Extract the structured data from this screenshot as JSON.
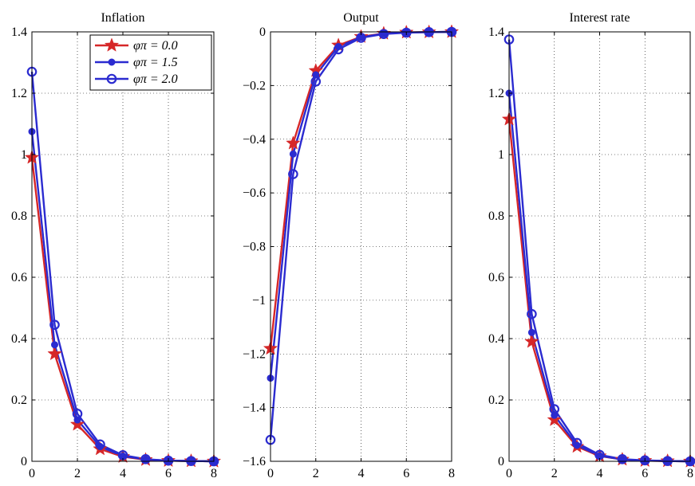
{
  "chart_data": [
    {
      "type": "line",
      "title": "Inflation",
      "xlabel": "",
      "ylabel": "",
      "xlim": [
        0,
        8
      ],
      "ylim": [
        0,
        1.4
      ],
      "xticks": [
        0,
        2,
        4,
        6,
        8
      ],
      "yticks": [
        0,
        0.2,
        0.4,
        0.6,
        0.8,
        1,
        1.2,
        1.4
      ],
      "xtick_labels": [
        "0",
        "2",
        "4",
        "6",
        "8"
      ],
      "ytick_labels": [
        "0",
        "0.2",
        "0.4",
        "0.6",
        "0.8",
        "1",
        "1.2",
        "1.4"
      ],
      "grid": true,
      "legend": "top-right",
      "x": [
        0,
        1,
        2,
        3,
        4,
        5,
        6,
        7,
        8
      ],
      "series": [
        {
          "name": "φπ = 0.0",
          "marker": "star",
          "color": "#d62728",
          "values": [
            0.99,
            0.35,
            0.12,
            0.04,
            0.015,
            0.005,
            0.002,
            0.001,
            0.0
          ]
        },
        {
          "name": "φπ = 1.5",
          "marker": "dot",
          "color": "#2b2bd0",
          "values": [
            1.075,
            0.38,
            0.135,
            0.048,
            0.017,
            0.006,
            0.002,
            0.001,
            0.0
          ]
        },
        {
          "name": "φπ = 2.0",
          "marker": "circle",
          "color": "#2b2bd0",
          "values": [
            1.27,
            0.445,
            0.155,
            0.055,
            0.02,
            0.007,
            0.002,
            0.001,
            0.0
          ]
        }
      ]
    },
    {
      "type": "line",
      "title": "Output",
      "xlabel": "",
      "ylabel": "",
      "xlim": [
        0,
        8
      ],
      "ylim": [
        -1.6,
        0
      ],
      "xticks": [
        0,
        2,
        4,
        6,
        8
      ],
      "yticks": [
        -1.6,
        -1.4,
        -1.2,
        -1,
        -0.8,
        -0.6,
        -0.4,
        -0.2,
        0
      ],
      "xtick_labels": [
        "0",
        "2",
        "4",
        "6",
        "8"
      ],
      "ytick_labels": [
        "−1.6",
        "−1.4",
        "−1.2",
        "−1",
        "−0.8",
        "−0.6",
        "−0.4",
        "−0.2",
        "0"
      ],
      "grid": true,
      "x": [
        0,
        1,
        2,
        3,
        4,
        5,
        6,
        7,
        8
      ],
      "series": [
        {
          "name": "φπ = 0.0",
          "marker": "star",
          "color": "#d62728",
          "values": [
            -1.18,
            -0.415,
            -0.145,
            -0.05,
            -0.018,
            -0.006,
            -0.002,
            -0.001,
            0.0
          ]
        },
        {
          "name": "φπ = 1.5",
          "marker": "dot",
          "color": "#2b2bd0",
          "values": [
            -1.29,
            -0.455,
            -0.16,
            -0.055,
            -0.02,
            -0.007,
            -0.002,
            -0.001,
            0.0
          ]
        },
        {
          "name": "φπ = 2.0",
          "marker": "circle",
          "color": "#2b2bd0",
          "values": [
            -1.52,
            -0.53,
            -0.185,
            -0.065,
            -0.022,
            -0.008,
            -0.003,
            -0.001,
            0.0
          ]
        }
      ]
    },
    {
      "type": "line",
      "title": "Interest rate",
      "xlabel": "",
      "ylabel": "",
      "xlim": [
        0,
        8
      ],
      "ylim": [
        0,
        1.4
      ],
      "xticks": [
        0,
        2,
        4,
        6,
        8
      ],
      "yticks": [
        0,
        0.2,
        0.4,
        0.6,
        0.8,
        1,
        1.2,
        1.4
      ],
      "xtick_labels": [
        "0",
        "2",
        "4",
        "6",
        "8"
      ],
      "ytick_labels": [
        "0",
        "0.2",
        "0.4",
        "0.6",
        "0.8",
        "1",
        "1.2",
        "1.4"
      ],
      "grid": true,
      "x": [
        0,
        1,
        2,
        3,
        4,
        5,
        6,
        7,
        8
      ],
      "series": [
        {
          "name": "φπ = 0.0",
          "marker": "star",
          "color": "#d62728",
          "values": [
            1.115,
            0.39,
            0.135,
            0.048,
            0.017,
            0.006,
            0.002,
            0.001,
            0.0
          ]
        },
        {
          "name": "φπ = 1.5",
          "marker": "dot",
          "color": "#2b2bd0",
          "values": [
            1.2,
            0.42,
            0.15,
            0.052,
            0.018,
            0.006,
            0.002,
            0.001,
            0.0
          ]
        },
        {
          "name": "φπ = 2.0",
          "marker": "circle",
          "color": "#2b2bd0",
          "values": [
            1.375,
            0.48,
            0.17,
            0.06,
            0.021,
            0.007,
            0.003,
            0.001,
            0.0
          ]
        }
      ]
    }
  ]
}
